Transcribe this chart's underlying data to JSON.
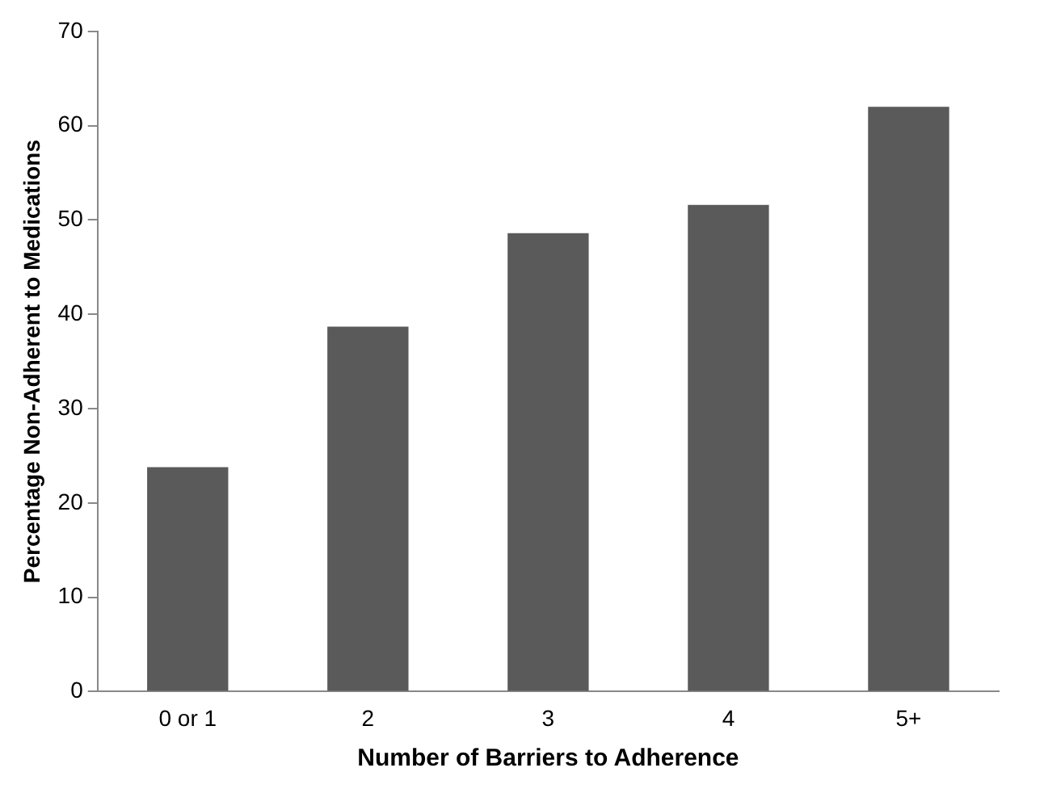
{
  "chart_data": {
    "type": "bar",
    "xlabel": "Number of Barriers to Adherence",
    "ylabel": "Percentage Non-Adherent to Medications",
    "categories": [
      "0 or 1",
      "2",
      "3",
      "4",
      "5+"
    ],
    "values": [
      23.8,
      38.7,
      48.6,
      51.6,
      62
    ],
    "color": "#5a5a5a",
    "ylim": [
      0,
      70
    ],
    "yticks": [
      0,
      10,
      20,
      30,
      40,
      50,
      60,
      70
    ],
    "grid": false,
    "legend": false
  }
}
